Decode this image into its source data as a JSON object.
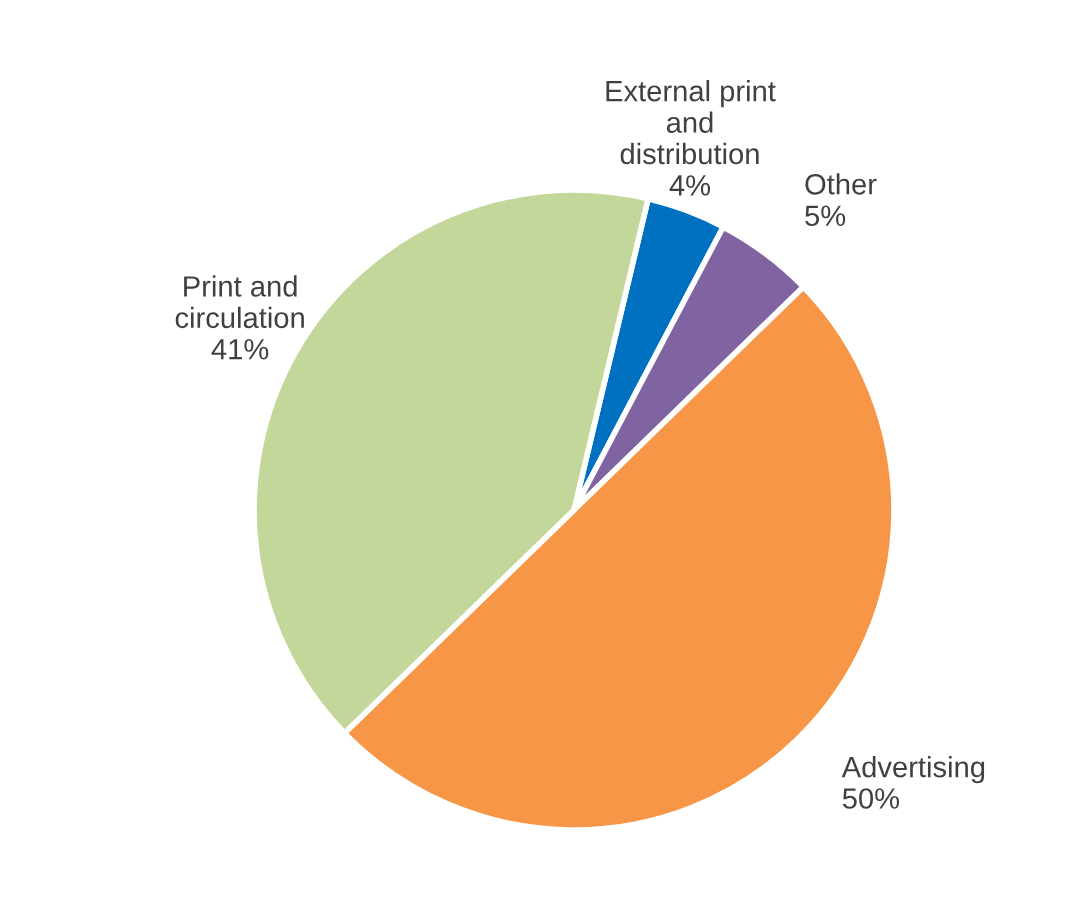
{
  "chart_data": {
    "type": "pie",
    "categories": [
      "External print\nand\ndistribution",
      "Other",
      "Advertising",
      "Print and\ncirculation"
    ],
    "values": [
      4,
      5,
      50,
      41
    ],
    "colors": [
      "#0070c0",
      "#8064a2",
      "#f79646",
      "#c4d79b"
    ],
    "value_labels": [
      "4%",
      "5%",
      "50%",
      "41%"
    ]
  }
}
